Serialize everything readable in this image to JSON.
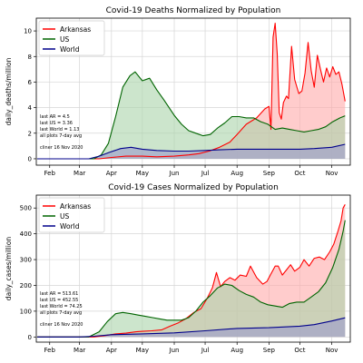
{
  "chart_data": [
    {
      "type": "area",
      "title": "Covid-19 Deaths Normalized by Population",
      "xlabel": "",
      "ylabel": "daily_deaths/million",
      "x_range": [
        "2020-01-19",
        "2020-11-19"
      ],
      "ylim": [
        -0.5,
        11
      ],
      "y_ticks": [
        0,
        2,
        4,
        6,
        8,
        10
      ],
      "x_ticks": [
        {
          "date": "2020-02-01",
          "label": "Feb"
        },
        {
          "date": "2020-03-01",
          "label": "Mar"
        },
        {
          "date": "2020-04-01",
          "label": "Apr"
        },
        {
          "date": "2020-05-01",
          "label": "May"
        },
        {
          "date": "2020-06-01",
          "label": "Jun"
        },
        {
          "date": "2020-07-01",
          "label": "Jul"
        },
        {
          "date": "2020-08-01",
          "label": "Aug"
        },
        {
          "date": "2020-09-01",
          "label": "Sep"
        },
        {
          "date": "2020-10-01",
          "label": "Oct"
        },
        {
          "date": "2020-11-01",
          "label": "Nov"
        }
      ],
      "grid": true,
      "legend_position": "top-left",
      "annotation": [
        "last AR = 4.5",
        "last US = 3.36",
        "last World = 1.13",
        "all plots 7-day avg"
      ],
      "credit": "cliner 16 Nov 2020",
      "series": [
        {
          "name": "Arkansas",
          "color": "#ff0000",
          "fill": "#ffaaaa",
          "points": [
            [
              "2020-01-20",
              0
            ],
            [
              "2020-03-20",
              0
            ],
            [
              "2020-04-01",
              0.1
            ],
            [
              "2020-04-15",
              0.2
            ],
            [
              "2020-05-01",
              0.2
            ],
            [
              "2020-05-15",
              0.15
            ],
            [
              "2020-06-01",
              0.2
            ],
            [
              "2020-06-15",
              0.3
            ],
            [
              "2020-06-25",
              0.4
            ],
            [
              "2020-07-05",
              0.6
            ],
            [
              "2020-07-15",
              0.9
            ],
            [
              "2020-07-25",
              1.3
            ],
            [
              "2020-08-01",
              1.9
            ],
            [
              "2020-08-10",
              2.7
            ],
            [
              "2020-08-20",
              3.2
            ],
            [
              "2020-08-28",
              3.9
            ],
            [
              "2020-09-01",
              4.1
            ],
            [
              "2020-09-03",
              2.3
            ],
            [
              "2020-09-05",
              9.5
            ],
            [
              "2020-09-07",
              10.6
            ],
            [
              "2020-09-09",
              8.2
            ],
            [
              "2020-09-11",
              3.6
            ],
            [
              "2020-09-13",
              3.1
            ],
            [
              "2020-09-15",
              4.4
            ],
            [
              "2020-09-18",
              4.9
            ],
            [
              "2020-09-20",
              4.7
            ],
            [
              "2020-09-23",
              8.8
            ],
            [
              "2020-09-26",
              6.2
            ],
            [
              "2020-09-30",
              5.1
            ],
            [
              "2020-10-03",
              5.3
            ],
            [
              "2020-10-06",
              6.7
            ],
            [
              "2020-10-09",
              9.1
            ],
            [
              "2020-10-12",
              6.9
            ],
            [
              "2020-10-15",
              5.6
            ],
            [
              "2020-10-18",
              8.1
            ],
            [
              "2020-10-21",
              7.0
            ],
            [
              "2020-10-24",
              6.0
            ],
            [
              "2020-10-27",
              7.1
            ],
            [
              "2020-10-30",
              6.4
            ],
            [
              "2020-11-02",
              7.2
            ],
            [
              "2020-11-05",
              6.6
            ],
            [
              "2020-11-08",
              6.8
            ],
            [
              "2020-11-11",
              5.8
            ],
            [
              "2020-11-14",
              4.5
            ]
          ]
        },
        {
          "name": "US",
          "color": "#006400",
          "fill": "#aad4aa",
          "points": [
            [
              "2020-01-20",
              0
            ],
            [
              "2020-03-15",
              0
            ],
            [
              "2020-03-22",
              0.3
            ],
            [
              "2020-03-29",
              1.2
            ],
            [
              "2020-04-05",
              3.3
            ],
            [
              "2020-04-12",
              5.6
            ],
            [
              "2020-04-19",
              6.5
            ],
            [
              "2020-04-24",
              6.8
            ],
            [
              "2020-05-01",
              6.1
            ],
            [
              "2020-05-08",
              6.3
            ],
            [
              "2020-05-15",
              5.4
            ],
            [
              "2020-05-22",
              4.6
            ],
            [
              "2020-06-01",
              3.4
            ],
            [
              "2020-06-08",
              2.7
            ],
            [
              "2020-06-15",
              2.2
            ],
            [
              "2020-06-22",
              2.0
            ],
            [
              "2020-06-29",
              1.8
            ],
            [
              "2020-07-06",
              1.9
            ],
            [
              "2020-07-13",
              2.4
            ],
            [
              "2020-07-20",
              2.8
            ],
            [
              "2020-07-27",
              3.3
            ],
            [
              "2020-08-03",
              3.3
            ],
            [
              "2020-08-10",
              3.2
            ],
            [
              "2020-08-17",
              3.2
            ],
            [
              "2020-08-24",
              2.9
            ],
            [
              "2020-08-31",
              2.7
            ],
            [
              "2020-09-07",
              2.3
            ],
            [
              "2020-09-14",
              2.4
            ],
            [
              "2020-09-21",
              2.3
            ],
            [
              "2020-09-28",
              2.2
            ],
            [
              "2020-10-05",
              2.1
            ],
            [
              "2020-10-12",
              2.2
            ],
            [
              "2020-10-19",
              2.3
            ],
            [
              "2020-10-26",
              2.5
            ],
            [
              "2020-11-02",
              2.9
            ],
            [
              "2020-11-09",
              3.2
            ],
            [
              "2020-11-14",
              3.36
            ]
          ]
        },
        {
          "name": "World",
          "color": "#00008b",
          "fill": "#9999cc",
          "points": [
            [
              "2020-01-20",
              0
            ],
            [
              "2020-03-10",
              0
            ],
            [
              "2020-03-20",
              0.2
            ],
            [
              "2020-03-30",
              0.5
            ],
            [
              "2020-04-10",
              0.8
            ],
            [
              "2020-04-20",
              0.9
            ],
            [
              "2020-05-01",
              0.75
            ],
            [
              "2020-05-15",
              0.65
            ],
            [
              "2020-06-01",
              0.6
            ],
            [
              "2020-06-15",
              0.6
            ],
            [
              "2020-07-01",
              0.65
            ],
            [
              "2020-07-15",
              0.7
            ],
            [
              "2020-08-01",
              0.75
            ],
            [
              "2020-08-15",
              0.75
            ],
            [
              "2020-09-01",
              0.75
            ],
            [
              "2020-09-15",
              0.75
            ],
            [
              "2020-10-01",
              0.75
            ],
            [
              "2020-10-15",
              0.8
            ],
            [
              "2020-11-01",
              0.9
            ],
            [
              "2020-11-14",
              1.13
            ]
          ]
        }
      ]
    },
    {
      "type": "area",
      "title": "Covid-19 Cases Normalized by Population",
      "xlabel": "",
      "ylabel": "daily_cases/million",
      "x_range": [
        "2020-01-19",
        "2020-11-19"
      ],
      "ylim": [
        -20,
        550
      ],
      "y_ticks": [
        0,
        100,
        200,
        300,
        400,
        500
      ],
      "x_ticks": [
        {
          "date": "2020-02-01",
          "label": "Feb"
        },
        {
          "date": "2020-03-01",
          "label": "Mar"
        },
        {
          "date": "2020-04-01",
          "label": "Apr"
        },
        {
          "date": "2020-05-01",
          "label": "May"
        },
        {
          "date": "2020-06-01",
          "label": "Jun"
        },
        {
          "date": "2020-07-01",
          "label": "Jul"
        },
        {
          "date": "2020-08-01",
          "label": "Aug"
        },
        {
          "date": "2020-09-01",
          "label": "Sep"
        },
        {
          "date": "2020-10-01",
          "label": "Oct"
        },
        {
          "date": "2020-11-01",
          "label": "Nov"
        }
      ],
      "grid": true,
      "legend_position": "top-left",
      "annotation": [
        "last AR = 513.61",
        "last US = 452.55",
        "last World = 74.25",
        "all plots 7-day avg"
      ],
      "credit": "cliner 16 Nov 2020",
      "series": [
        {
          "name": "Arkansas",
          "color": "#ff0000",
          "fill": "#ffaaaa",
          "points": [
            [
              "2020-01-20",
              0
            ],
            [
              "2020-03-15",
              0
            ],
            [
              "2020-03-25",
              5
            ],
            [
              "2020-04-05",
              12
            ],
            [
              "2020-04-15",
              15
            ],
            [
              "2020-04-25",
              20
            ],
            [
              "2020-05-01",
              22
            ],
            [
              "2020-05-10",
              24
            ],
            [
              "2020-05-20",
              28
            ],
            [
              "2020-05-28",
              42
            ],
            [
              "2020-06-05",
              55
            ],
            [
              "2020-06-12",
              70
            ],
            [
              "2020-06-20",
              95
            ],
            [
              "2020-06-27",
              110
            ],
            [
              "2020-07-03",
              150
            ],
            [
              "2020-07-08",
              190
            ],
            [
              "2020-07-12",
              250
            ],
            [
              "2020-07-16",
              195
            ],
            [
              "2020-07-20",
              215
            ],
            [
              "2020-07-25",
              230
            ],
            [
              "2020-07-30",
              220
            ],
            [
              "2020-08-04",
              240
            ],
            [
              "2020-08-10",
              235
            ],
            [
              "2020-08-14",
              275
            ],
            [
              "2020-08-20",
              230
            ],
            [
              "2020-08-26",
              205
            ],
            [
              "2020-08-30",
              215
            ],
            [
              "2020-09-03",
              245
            ],
            [
              "2020-09-07",
              275
            ],
            [
              "2020-09-10",
              275
            ],
            [
              "2020-09-14",
              240
            ],
            [
              "2020-09-18",
              260
            ],
            [
              "2020-09-22",
              280
            ],
            [
              "2020-09-26",
              255
            ],
            [
              "2020-10-01",
              270
            ],
            [
              "2020-10-05",
              300
            ],
            [
              "2020-10-10",
              275
            ],
            [
              "2020-10-15",
              305
            ],
            [
              "2020-10-20",
              310
            ],
            [
              "2020-10-25",
              300
            ],
            [
              "2020-10-30",
              330
            ],
            [
              "2020-11-03",
              360
            ],
            [
              "2020-11-07",
              410
            ],
            [
              "2020-11-10",
              450
            ],
            [
              "2020-11-12",
              500
            ],
            [
              "2020-11-14",
              513.61
            ]
          ]
        },
        {
          "name": "US",
          "color": "#006400",
          "fill": "#aad4aa",
          "points": [
            [
              "2020-01-20",
              0
            ],
            [
              "2020-03-10",
              0
            ],
            [
              "2020-03-20",
              20
            ],
            [
              "2020-03-28",
              60
            ],
            [
              "2020-04-05",
              90
            ],
            [
              "2020-04-12",
              95
            ],
            [
              "2020-04-20",
              90
            ],
            [
              "2020-04-27",
              85
            ],
            [
              "2020-05-04",
              80
            ],
            [
              "2020-05-11",
              75
            ],
            [
              "2020-05-18",
              70
            ],
            [
              "2020-05-25",
              65
            ],
            [
              "2020-06-01",
              65
            ],
            [
              "2020-06-08",
              65
            ],
            [
              "2020-06-15",
              75
            ],
            [
              "2020-06-22",
              100
            ],
            [
              "2020-06-29",
              135
            ],
            [
              "2020-07-06",
              160
            ],
            [
              "2020-07-13",
              190
            ],
            [
              "2020-07-20",
              205
            ],
            [
              "2020-07-27",
              200
            ],
            [
              "2020-08-03",
              180
            ],
            [
              "2020-08-10",
              165
            ],
            [
              "2020-08-17",
              155
            ],
            [
              "2020-08-24",
              135
            ],
            [
              "2020-08-31",
              125
            ],
            [
              "2020-09-07",
              120
            ],
            [
              "2020-09-14",
              115
            ],
            [
              "2020-09-21",
              130
            ],
            [
              "2020-09-28",
              135
            ],
            [
              "2020-10-05",
              135
            ],
            [
              "2020-10-12",
              155
            ],
            [
              "2020-10-19",
              175
            ],
            [
              "2020-10-26",
              210
            ],
            [
              "2020-11-02",
              270
            ],
            [
              "2020-11-08",
              340
            ],
            [
              "2020-11-12",
              410
            ],
            [
              "2020-11-14",
              452.55
            ]
          ]
        },
        {
          "name": "World",
          "color": "#00008b",
          "fill": "#9999cc",
          "points": [
            [
              "2020-01-20",
              0
            ],
            [
              "2020-03-01",
              0
            ],
            [
              "2020-03-15",
              3
            ],
            [
              "2020-04-01",
              9
            ],
            [
              "2020-05-01",
              12
            ],
            [
              "2020-06-01",
              16
            ],
            [
              "2020-07-01",
              24
            ],
            [
              "2020-08-01",
              33
            ],
            [
              "2020-09-01",
              36
            ],
            [
              "2020-10-01",
              42
            ],
            [
              "2020-10-15",
              48
            ],
            [
              "2020-11-01",
              62
            ],
            [
              "2020-11-14",
              74.25
            ]
          ]
        }
      ]
    }
  ]
}
